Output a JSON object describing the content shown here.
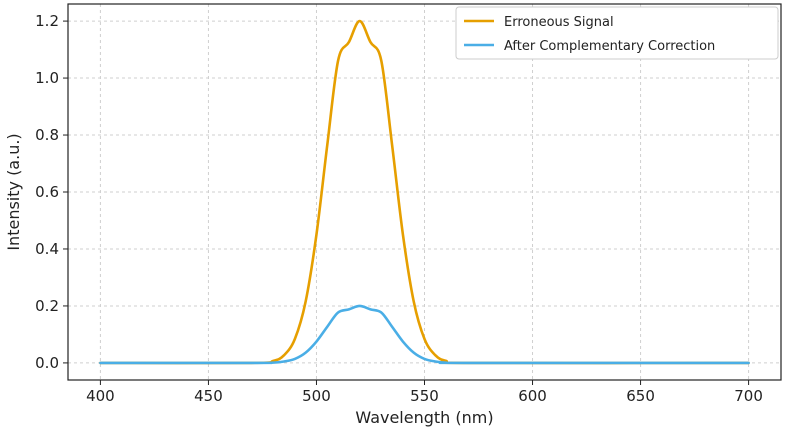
{
  "chart_data": {
    "type": "line",
    "title": "",
    "xlabel": "Wavelength (nm)",
    "ylabel": "Intensity (a.u.)",
    "xlim": [
      385,
      715
    ],
    "ylim": [
      -0.06,
      1.26
    ],
    "xticks": [
      400,
      450,
      500,
      550,
      600,
      650,
      700
    ],
    "yticks": [
      0.0,
      0.2,
      0.4,
      0.6,
      0.8,
      1.0,
      1.2
    ],
    "grid": true,
    "legend_position": "top-right",
    "series": [
      {
        "name": "Erroneous Signal",
        "color": "#E69F00",
        "x": [
          400,
          470,
          480,
          485,
          490,
          495,
          500,
          505,
          510,
          515,
          520,
          525,
          530,
          535,
          540,
          545,
          550,
          555,
          560,
          570,
          700
        ],
        "y": [
          0.0,
          0.0,
          0.007,
          0.027,
          0.084,
          0.216,
          0.451,
          0.765,
          1.061,
          1.126,
          1.2,
          1.126,
          1.061,
          0.765,
          0.451,
          0.216,
          0.084,
          0.027,
          0.007,
          0.0,
          0.0
        ]
      },
      {
        "name": "After Complementary Correction",
        "color": "#4AAEE6",
        "x": [
          400,
          470,
          480,
          485,
          490,
          495,
          500,
          505,
          510,
          515,
          520,
          525,
          530,
          535,
          540,
          545,
          550,
          555,
          560,
          570,
          700
        ],
        "y": [
          0.0,
          0.0,
          0.001,
          0.005,
          0.014,
          0.036,
          0.075,
          0.127,
          0.177,
          0.188,
          0.2,
          0.188,
          0.177,
          0.127,
          0.075,
          0.036,
          0.014,
          0.005,
          0.001,
          0.0,
          0.0
        ]
      }
    ]
  }
}
